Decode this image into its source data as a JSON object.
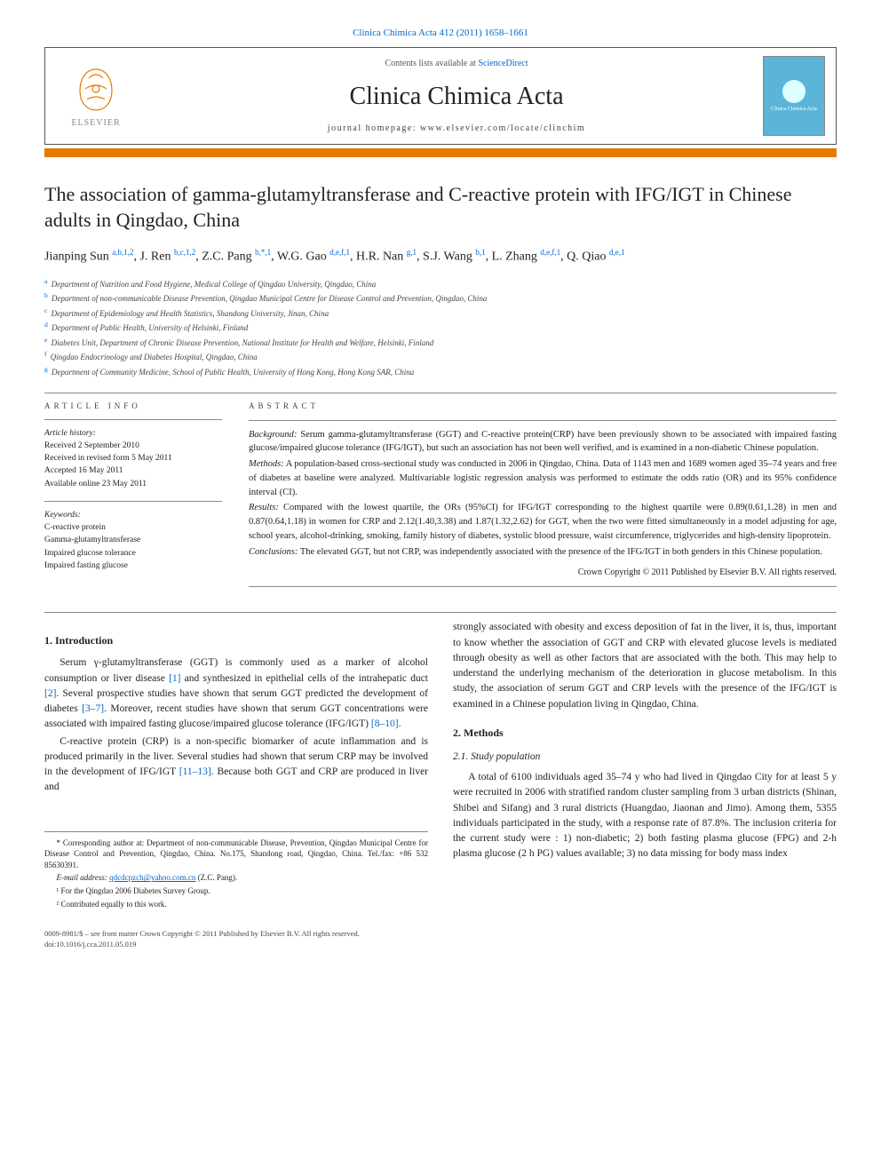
{
  "journal_ref": "Clinica Chimica Acta 412 (2011) 1658–1661",
  "header": {
    "contents_prefix": "Contents lists available at ",
    "contents_link": "ScienceDirect",
    "journal_name": "Clinica Chimica Acta",
    "homepage": "journal homepage: www.elsevier.com/locate/clinchim",
    "publisher": "ELSEVIER",
    "cover_text": "Clinica Chimica Acta"
  },
  "colors": {
    "orange": "#e67a00",
    "link": "#0066cc",
    "cover_bg": "#5bb5d8"
  },
  "title": "The association of gamma-glutamyltransferase and C-reactive protein with IFG/IGT in Chinese adults in Qingdao, China",
  "authors_html": "Jianping Sun <sup>a,b,1,2</sup>, J. Ren <sup>b,c,1,2</sup>, Z.C. Pang <sup>b,*,1</sup>, W.G. Gao <sup>d,e,f,1</sup>, H.R. Nan <sup>g,1</sup>, S.J. Wang <sup>b,1</sup>, L. Zhang <sup>d,e,f,1</sup>, Q. Qiao <sup>d,e,1</sup>",
  "affiliations": [
    {
      "sup": "a",
      "text": "Department of Nutrition and Food Hygiene, Medical College of Qingdao University, Qingdao, China"
    },
    {
      "sup": "b",
      "text": "Department of non-communicable Disease Prevention, Qingdao Municipal Centre for Disease Control and Prevention, Qingdao, China"
    },
    {
      "sup": "c",
      "text": "Department of Epidemiology and Health Statistics, Shandong University, Jinan, China"
    },
    {
      "sup": "d",
      "text": "Department of Public Health, University of Helsinki, Finland"
    },
    {
      "sup": "e",
      "text": "Diabetes Unit, Department of Chronic Disease Prevention, National Institute for Health and Welfare, Helsinki, Finland"
    },
    {
      "sup": "f",
      "text": "Qingdao Endocrinology and Diabetes Hospital, Qingdao, China"
    },
    {
      "sup": "g",
      "text": "Department of Community Medicine, School of Public Health, University of Hong Kong, Hong Kong SAR, China"
    }
  ],
  "article_info": {
    "label": "ARTICLE INFO",
    "history_label": "Article history:",
    "history": [
      "Received 2 September 2010",
      "Received in revised form 5 May 2011",
      "Accepted 16 May 2011",
      "Available online 23 May 2011"
    ],
    "keywords_label": "Keywords:",
    "keywords": [
      "C-reactive protein",
      "Gamma-glutamyltransferase",
      "Impaired glucose tolerance",
      "Impaired fasting glucose"
    ]
  },
  "abstract": {
    "label": "ABSTRACT",
    "background_label": "Background:",
    "background": "Serum gamma-glutamyltransferase (GGT) and C-reactive protein(CRP) have been previously shown to be associated with impaired fasting glucose/impaired glucose tolerance (IFG/IGT), but such an association has not been well verified, and is examined in a non-diabetic Chinese population.",
    "methods_label": "Methods:",
    "methods": "A population-based cross-sectional study was conducted in 2006 in Qingdao, China. Data of 1143 men and 1689 women aged 35–74 years and free of diabetes at baseline were analyzed. Multivariable logistic regression analysis was performed to estimate the odds ratio (OR) and its 95% confidence interval (CI).",
    "results_label": "Results:",
    "results": "Compared with the lowest quartile, the ORs (95%CI) for IFG/IGT corresponding to the highest quartile were 0.89(0.61,1.28) in men and 0.87(0.64,1.18) in women for CRP and 2.12(1.40,3.38) and 1.87(1.32,2.62) for GGT, when the two were fitted simultaneously in a model adjusting for age, school years, alcohol-drinking, smoking, family history of diabetes, systolic blood pressure, waist circumference, triglycerides and high-density lipoprotein.",
    "conclusions_label": "Conclusions:",
    "conclusions": "The elevated GGT, but not CRP, was independently associated with the presence of the IFG/IGT in both genders in this Chinese population.",
    "copyright": "Crown Copyright © 2011 Published by Elsevier B.V. All rights reserved."
  },
  "body": {
    "intro_heading": "1. Introduction",
    "intro_p1": "Serum γ-glutamyltransferase (GGT) is commonly used as a marker of alcohol consumption or liver disease [1] and synthesized in epithelial cells of the intrahepatic duct [2]. Several prospective studies have shown that serum GGT predicted the development of diabetes [3–7]. Moreover, recent studies have shown that serum GGT concentrations were associated with impaired fasting glucose/impaired glucose tolerance (IFG/IGT) [8–10].",
    "intro_p2": "C-reactive protein (CRP) is a non-specific biomarker of acute inflammation and is produced primarily in the liver. Several studies had shown that serum CRP may be involved in the development of IFG/IGT [11–13]. Because both GGT and CRP are produced in liver and",
    "col2_cont": "strongly associated with obesity and excess deposition of fat in the liver, it is, thus, important to know whether the association of GGT and CRP with elevated glucose levels is mediated through obesity as well as other factors that are associated with the both. This may help to understand the underlying mechanism of the deterioration in glucose metabolism. In this study, the association of serum GGT and CRP levels with the presence of the IFG/IGT is examined in a Chinese population living in Qingdao, China.",
    "methods_heading": "2. Methods",
    "study_pop_heading": "2.1. Study population",
    "study_pop_p1": "A total of 6100 individuals aged 35–74 y who had lived in Qingdao City for at least 5 y were recruited in 2006 with stratified random cluster sampling from 3 urban districts (Shinan, Shibei and Sifang) and 3 rural districts (Huangdao, Jiaonan and Jimo). Among them, 5355 individuals participated in the study, with a response rate of 87.8%. The inclusion criteria for the current study were : 1) non-diabetic; 2) both fasting plasma glucose (FPG) and 2-h plasma glucose (2 h PG) values available; 3) no data missing for body mass index"
  },
  "footnotes": {
    "corr": "* Corresponding author at: Department of non-communicable Disease, Prevention, Qingdao Municipal Centre for Disease Control and Prevention, Qingdao, China. No.175, Shandong road, Qingdao, China. Tel./fax: +86 532 85630391.",
    "email_label": "E-mail address:",
    "email": "qdcdcpzch@yahoo.com.cn",
    "email_who": "(Z.C. Pang).",
    "note1": "¹ For the Qingdao 2006 Diabetes Survey Group.",
    "note2": "² Contributed equally to this work."
  },
  "footer": {
    "line1": "0009-8981/$ – see front matter Crown Copyright © 2011 Published by Elsevier B.V. All rights reserved.",
    "line2": "doi:10.1016/j.cca.2011.05.019"
  }
}
